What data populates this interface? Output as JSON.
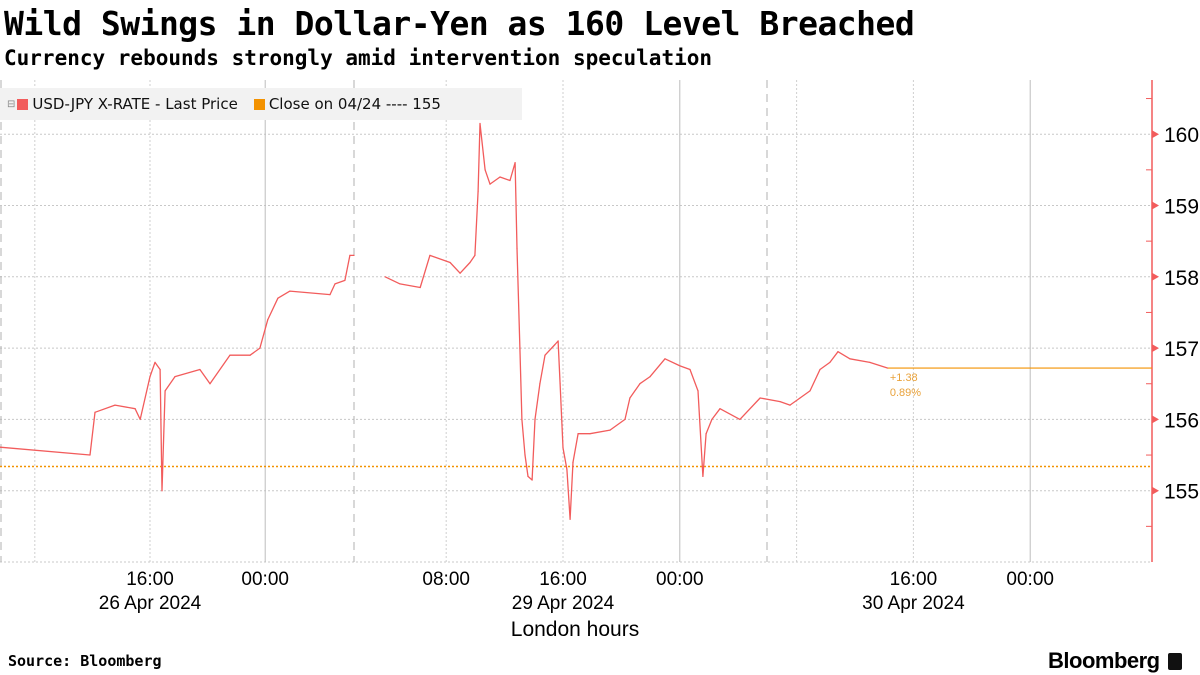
{
  "chart_data": {
    "type": "line",
    "title": "Wild Swings in Dollar-Yen as 160 Level Breached",
    "subtitle": "Currency rebounds strongly amid intervention speculation",
    "xlabel": "London hours",
    "ylabel": "",
    "ylim": [
      154.0,
      160.76
    ],
    "y_ticks": [
      "155",
      "156",
      "157",
      "158",
      "159",
      "160"
    ],
    "y_axis_position": "right",
    "x_ticks": [
      {
        "t": "2024-04-26T16:00",
        "label": "16:00",
        "date": "26 Apr 2024"
      },
      {
        "t": "2024-04-27T00:00",
        "label": "00:00",
        "date": ""
      },
      {
        "t": "2024-04-29T08:00",
        "label": "08:00",
        "date": ""
      },
      {
        "t": "2024-04-29T16:00",
        "label": "16:00",
        "date": "29 Apr 2024"
      },
      {
        "t": "2024-04-30T00:00",
        "label": "00:00",
        "date": ""
      },
      {
        "t": "2024-04-30T16:00",
        "label": "16:00",
        "date": "30 Apr 2024"
      },
      {
        "t": "2024-05-01T00:00",
        "label": "00:00",
        "date": ""
      }
    ],
    "grid": true,
    "legend_position": "top-left",
    "legend": [
      {
        "label": "USD-JPY X-RATE - Last Price",
        "color": "#f25c5c"
      },
      {
        "label": "Close on 04/24 ---- 155",
        "color": "#f39200"
      }
    ],
    "reference_line": {
      "value": 155.34,
      "color": "#f39200"
    },
    "annotation": {
      "change": "+1.38",
      "percent": "0.89%",
      "color": "#e9a23b"
    },
    "series": [
      {
        "name": "USD-JPY X-RATE - Last Price",
        "color": "#f25c5c",
        "points": [
          [
            "2024-04-26T05:35",
            155.61
          ],
          [
            "2024-04-26T11:50",
            155.5
          ],
          [
            "2024-04-26T12:11",
            156.1
          ],
          [
            "2024-04-26T13:34",
            156.2
          ],
          [
            "2024-04-26T14:58",
            156.15
          ],
          [
            "2024-04-26T15:19",
            156.0
          ],
          [
            "2024-04-26T16:00",
            156.6
          ],
          [
            "2024-04-26T16:21",
            156.8
          ],
          [
            "2024-04-26T16:42",
            156.7
          ],
          [
            "2024-04-26T16:50",
            155.0
          ],
          [
            "2024-04-26T17:03",
            156.4
          ],
          [
            "2024-04-26T17:44",
            156.6
          ],
          [
            "2024-04-26T19:28",
            156.7
          ],
          [
            "2024-04-26T20:10",
            156.5
          ],
          [
            "2024-04-26T21:33",
            156.9
          ],
          [
            "2024-04-26T22:57",
            156.9
          ],
          [
            "2024-04-26T23:38",
            157.0
          ],
          [
            "2024-04-27T00:11",
            157.4
          ],
          [
            "2024-04-27T00:53",
            157.7
          ],
          [
            "2024-04-27T01:43",
            157.8
          ],
          [
            "2024-04-27T04:30",
            157.75
          ],
          [
            "2024-04-27T04:51",
            157.9
          ],
          [
            "2024-04-27T05:32",
            157.95
          ],
          [
            "2024-04-27T05:53",
            158.3
          ],
          [
            "2024-04-27T06:10",
            158.3
          ],
          null,
          [
            "2024-04-29T03:49",
            158.0
          ],
          [
            "2024-04-29T04:50",
            157.9
          ],
          [
            "2024-04-29T06:13",
            157.85
          ],
          [
            "2024-04-29T06:53",
            158.3
          ],
          [
            "2024-04-29T08:16",
            158.2
          ],
          [
            "2024-04-29T08:57",
            158.05
          ],
          [
            "2024-04-29T09:38",
            158.2
          ],
          [
            "2024-04-29T09:58",
            158.3
          ],
          [
            "2024-04-29T10:11",
            159.2
          ],
          [
            "2024-04-29T10:19",
            160.15
          ],
          [
            "2024-04-29T10:40",
            159.5
          ],
          [
            "2024-04-29T11:00",
            159.3
          ],
          [
            "2024-04-29T11:41",
            159.4
          ],
          [
            "2024-04-29T12:22",
            159.35
          ],
          [
            "2024-04-29T12:43",
            159.6
          ],
          [
            "2024-04-29T12:51",
            158.4
          ],
          [
            "2024-04-29T13:03",
            157.0
          ],
          [
            "2024-04-29T13:11",
            156.0
          ],
          [
            "2024-04-29T13:24",
            155.5
          ],
          [
            "2024-04-29T13:36",
            155.2
          ],
          [
            "2024-04-29T13:53",
            155.15
          ],
          [
            "2024-04-29T14:05",
            156.0
          ],
          [
            "2024-04-29T14:25",
            156.5
          ],
          [
            "2024-04-29T14:46",
            156.9
          ],
          [
            "2024-04-29T15:27",
            157.05
          ],
          [
            "2024-04-29T15:40",
            157.1
          ],
          [
            "2024-04-29T15:48",
            156.5
          ],
          [
            "2024-04-29T16:00",
            155.6
          ],
          [
            "2024-04-29T16:16",
            155.3
          ],
          [
            "2024-04-29T16:29",
            154.6
          ],
          [
            "2024-04-29T16:41",
            155.4
          ],
          [
            "2024-04-29T17:02",
            155.8
          ],
          [
            "2024-04-29T17:51",
            155.8
          ],
          [
            "2024-04-29T19:13",
            155.85
          ],
          [
            "2024-04-29T20:15",
            156.0
          ],
          [
            "2024-04-29T20:35",
            156.3
          ],
          [
            "2024-04-29T21:16",
            156.5
          ],
          [
            "2024-04-29T21:58",
            156.6
          ],
          [
            "2024-04-29T22:59",
            156.85
          ],
          [
            "2024-04-30T00:01",
            156.75
          ],
          [
            "2024-04-30T00:42",
            156.7
          ],
          [
            "2024-04-30T01:15",
            156.4
          ],
          [
            "2024-04-30T01:35",
            155.2
          ],
          [
            "2024-04-30T01:48",
            155.8
          ],
          [
            "2024-04-30T02:12",
            156.0
          ],
          [
            "2024-04-30T02:45",
            156.15
          ],
          [
            "2024-04-30T04:07",
            156.0
          ],
          [
            "2024-04-30T05:30",
            156.3
          ],
          [
            "2024-04-30T06:52",
            156.25
          ],
          [
            "2024-04-30T07:33",
            156.2
          ],
          [
            "2024-04-30T08:14",
            156.3
          ],
          [
            "2024-04-30T08:55",
            156.4
          ],
          [
            "2024-04-30T09:36",
            156.7
          ],
          [
            "2024-04-30T10:17",
            156.8
          ],
          [
            "2024-04-30T10:50",
            156.95
          ],
          [
            "2024-04-30T11:39",
            156.85
          ],
          [
            "2024-04-30T13:01",
            156.8
          ],
          [
            "2024-04-30T14:15",
            156.72
          ]
        ]
      }
    ]
  },
  "footer": {
    "source": "Source: Bloomberg",
    "brand": "Bloomberg"
  }
}
